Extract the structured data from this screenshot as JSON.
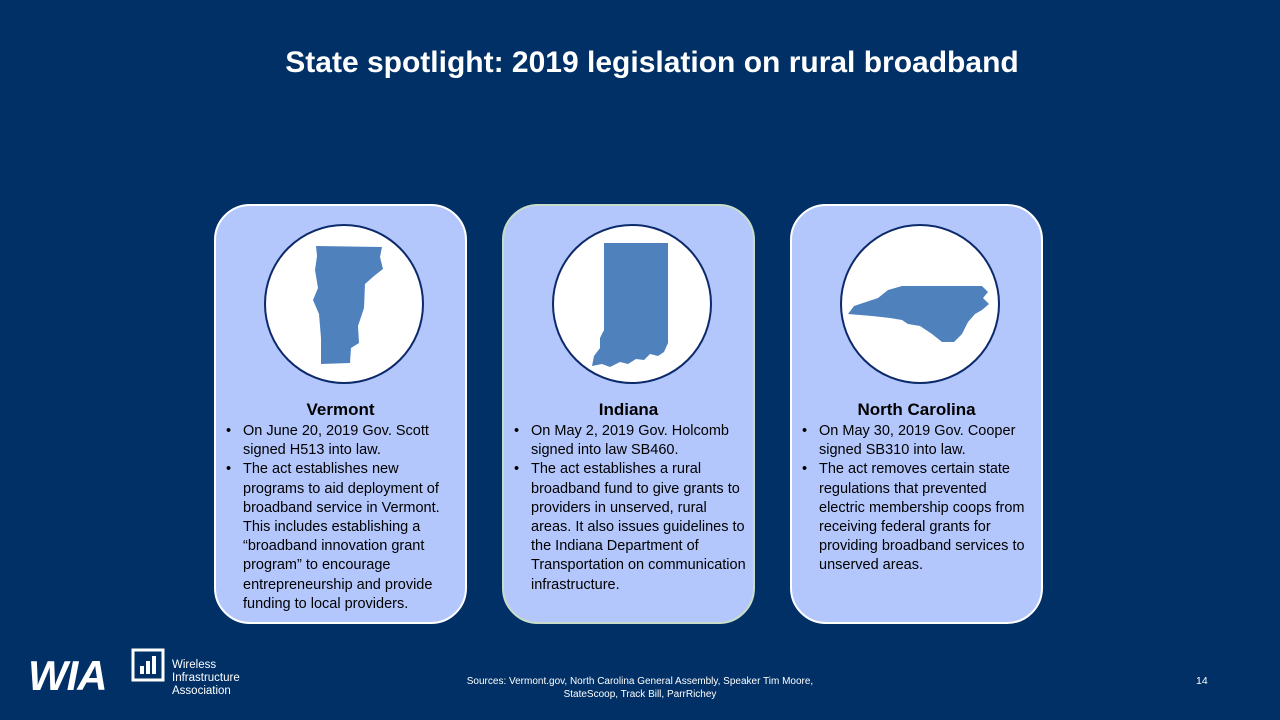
{
  "slide": {
    "title": "State spotlight: 2019 legislation on rural broadband",
    "page_number": "14",
    "sources_line1": "Sources: Vermont.gov, North Carolina General Assembly, Speaker Tim Moore,",
    "sources_line2": "StateScoop, Track Bill, ParrRichey"
  },
  "logo": {
    "letters": "WIA",
    "org_line1": "Wireless",
    "org_line2": "Infrastructure",
    "org_line3": "Association"
  },
  "cards": [
    {
      "state": "Vermont",
      "map_icon": "vermont-map-icon",
      "bullets": [
        "On June 20, 2019 Gov. Scott signed H513 into law.",
        "The act establishes new programs to aid deployment of broadband service in Vermont. This includes establishing a “broadband innovation grant program” to encourage entrepreneurship and provide funding to local providers."
      ]
    },
    {
      "state": "Indiana",
      "map_icon": "indiana-map-icon",
      "bullets": [
        "On May 2, 2019 Gov. Holcomb signed into law SB460.",
        "The act establishes a rural broadband fund to give grants to providers in unserved, rural areas. It also issues guidelines to the Indiana Department of Transportation on communication infrastructure."
      ]
    },
    {
      "state": "North Carolina",
      "map_icon": "north-carolina-map-icon",
      "bullets": [
        "On May 30, 2019 Gov. Cooper signed SB310 into law.",
        "The act removes certain state regulations that prevented electric membership coops from receiving federal grants for providing broadband services to unserved areas."
      ]
    }
  ],
  "colors": {
    "background": "#003066",
    "card_fill": "#b4c7fc",
    "map_fill": "#4f81bd",
    "circle_border": "#0b2a6b"
  }
}
